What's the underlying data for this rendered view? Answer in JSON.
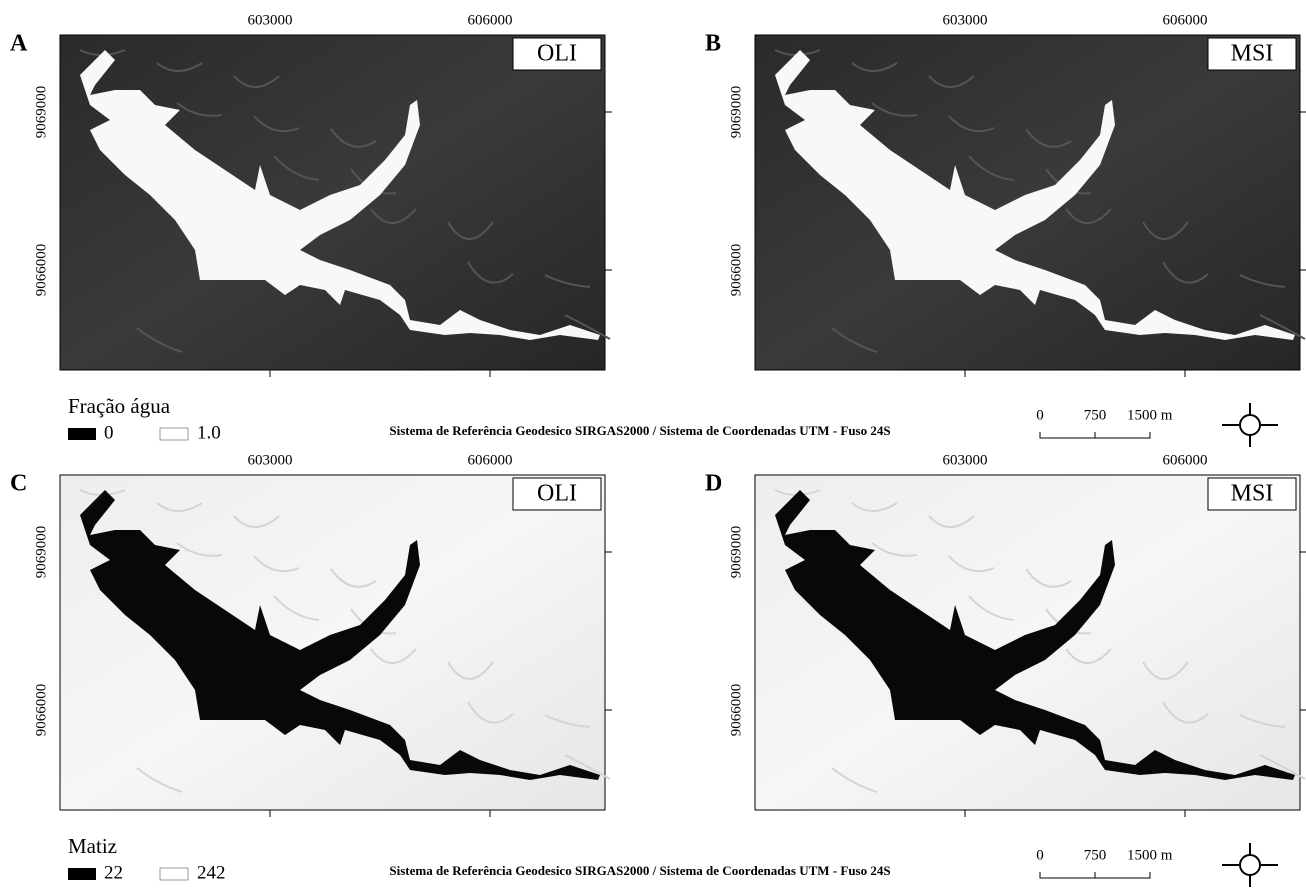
{
  "panels": [
    {
      "letter": "A",
      "sensor": "OLI",
      "x_ticks": [
        "603000",
        "606000"
      ],
      "y_ticks": [
        "9069000",
        "9066000"
      ]
    },
    {
      "letter": "B",
      "sensor": "MSI",
      "x_ticks": [
        "603000",
        "606000"
      ],
      "y_ticks": [
        "9069000",
        "9066000"
      ]
    },
    {
      "letter": "C",
      "sensor": "OLI",
      "x_ticks": [
        "603000",
        "606000"
      ],
      "y_ticks": [
        "9069000",
        "9066000"
      ]
    },
    {
      "letter": "D",
      "sensor": "MSI",
      "x_ticks": [
        "603000",
        "606000"
      ],
      "y_ticks": [
        "9069000",
        "9066000"
      ]
    }
  ],
  "legends": [
    {
      "title": "Fração água",
      "items": [
        "0",
        "1.0"
      ],
      "crs": "Sistema de Referência Geodesico SIRGAS2000 / Sistema de Coordenadas UTM - Fuso 24S",
      "scale": [
        "0",
        "750",
        "1500 m"
      ]
    },
    {
      "title": "Matiz",
      "items": [
        "22",
        "242"
      ],
      "crs": "Sistema de Referência Geodesico SIRGAS2000 / Sistema de Coordenadas UTM - Fuso 24S",
      "scale": [
        "0",
        "750",
        "1500 m"
      ]
    }
  ]
}
